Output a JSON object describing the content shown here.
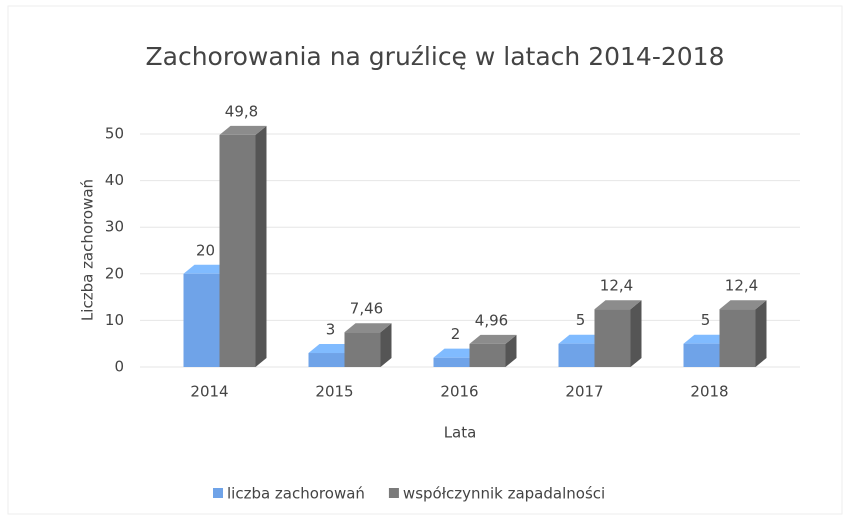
{
  "chart_data": {
    "type": "bar3d",
    "title": "Zachorowania na gruźlicę w latach 2014-2018",
    "x_label": "Lata",
    "y_label": "Liczba zachorowań",
    "categories": [
      "2014",
      "2015",
      "2016",
      "2017",
      "2018"
    ],
    "series": [
      {
        "name": "liczba zachorowań",
        "color": "#6fa3e8",
        "values": [
          20,
          3,
          2,
          5,
          5
        ]
      },
      {
        "name": "współczynnik zapadalności",
        "color": "#7a7a7a",
        "values": [
          49.8,
          7.46,
          4.96,
          12.4,
          12.4
        ],
        "value_labels": [
          "49,8",
          "7,46",
          "4,96",
          "12,4",
          "12,4"
        ]
      }
    ],
    "ylim": [
      0,
      50
    ],
    "yticks": [
      0,
      10,
      20,
      30,
      40,
      50
    ],
    "grid": true,
    "legend": "bottom"
  }
}
